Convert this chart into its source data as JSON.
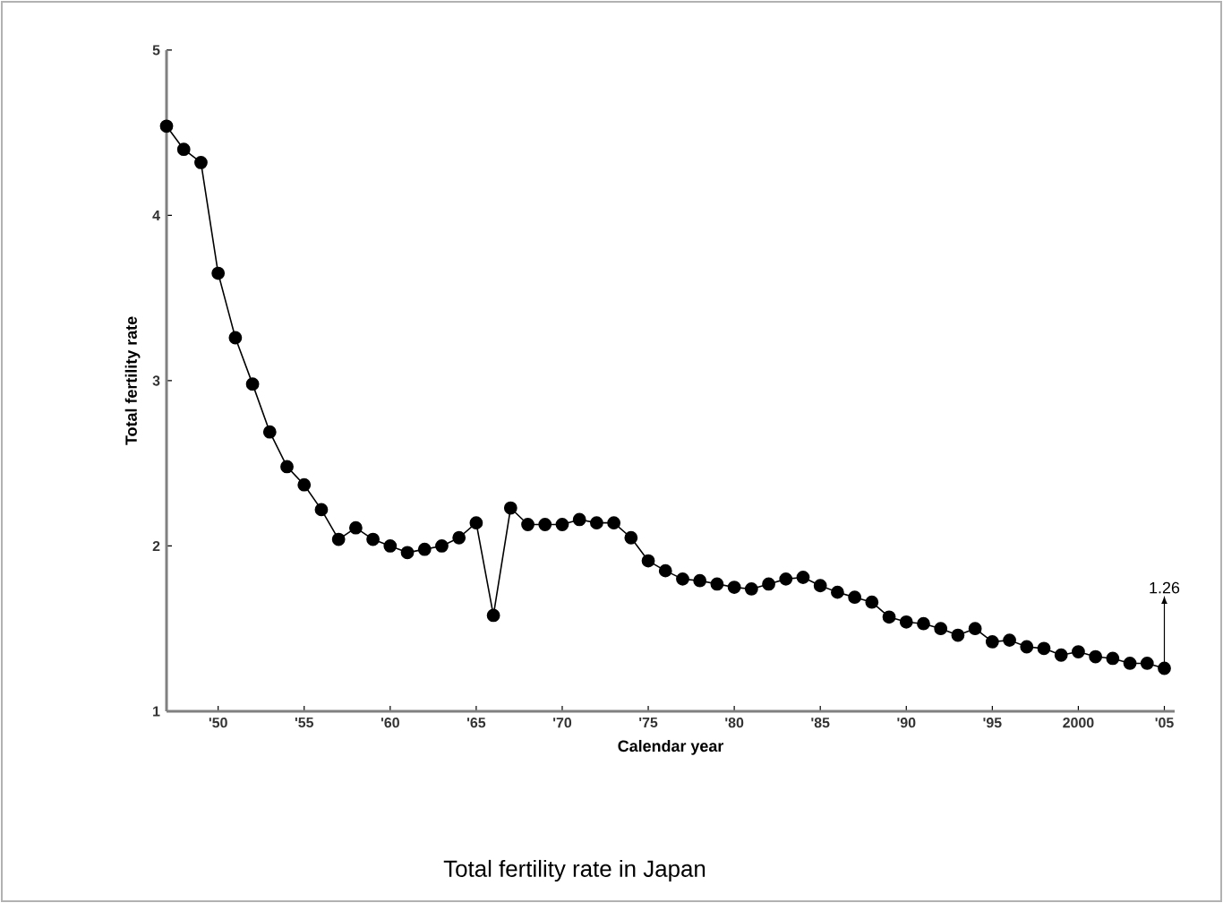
{
  "chart_data": {
    "type": "line",
    "title": "Total fertility rate in Japan",
    "xlabel": "Calendar year",
    "ylabel": "Total fertility rate",
    "x": [
      1947,
      1948,
      1949,
      1950,
      1951,
      1952,
      1953,
      1954,
      1955,
      1956,
      1957,
      1958,
      1959,
      1960,
      1961,
      1962,
      1963,
      1964,
      1965,
      1966,
      1967,
      1968,
      1969,
      1970,
      1971,
      1972,
      1973,
      1974,
      1975,
      1976,
      1977,
      1978,
      1979,
      1980,
      1981,
      1982,
      1983,
      1984,
      1985,
      1986,
      1987,
      1988,
      1989,
      1990,
      1991,
      1992,
      1993,
      1994,
      1995,
      1996,
      1997,
      1998,
      1999,
      2000,
      2001,
      2002,
      2003,
      2004,
      2005
    ],
    "series": [
      {
        "color": "#000000",
        "values": [
          4.54,
          4.4,
          4.32,
          3.65,
          3.26,
          2.98,
          2.69,
          2.48,
          2.37,
          2.22,
          2.04,
          2.11,
          2.04,
          2.0,
          1.96,
          1.98,
          2.0,
          2.05,
          2.14,
          1.58,
          2.23,
          2.13,
          2.13,
          2.13,
          2.16,
          2.14,
          2.14,
          2.05,
          1.91,
          1.85,
          1.8,
          1.79,
          1.77,
          1.75,
          1.74,
          1.77,
          1.8,
          1.81,
          1.76,
          1.72,
          1.69,
          1.66,
          1.57,
          1.54,
          1.53,
          1.5,
          1.46,
          1.5,
          1.42,
          1.43,
          1.39,
          1.38,
          1.34,
          1.36,
          1.33,
          1.32,
          1.29,
          1.29,
          1.26
        ]
      }
    ],
    "xlim": [
      1947,
      2005.6
    ],
    "ylim": [
      1,
      5
    ],
    "xticks": [
      {
        "value": 1950,
        "label": "'50"
      },
      {
        "value": 1955,
        "label": "'55"
      },
      {
        "value": 1960,
        "label": "'60"
      },
      {
        "value": 1965,
        "label": "'65"
      },
      {
        "value": 1970,
        "label": "'70"
      },
      {
        "value": 1975,
        "label": "'75"
      },
      {
        "value": 1980,
        "label": "'80"
      },
      {
        "value": 1985,
        "label": "'85"
      },
      {
        "value": 1990,
        "label": "'90"
      },
      {
        "value": 1995,
        "label": "'95"
      },
      {
        "value": 2000,
        "label": "2000"
      },
      {
        "value": 2005,
        "label": "'05"
      }
    ],
    "yticks": [
      1,
      2,
      3,
      4,
      5
    ],
    "annotations": [
      {
        "text": "1.26",
        "x": 2005,
        "y": 1.26
      }
    ],
    "marker": "circle",
    "line_style": "solid",
    "grid": false
  }
}
